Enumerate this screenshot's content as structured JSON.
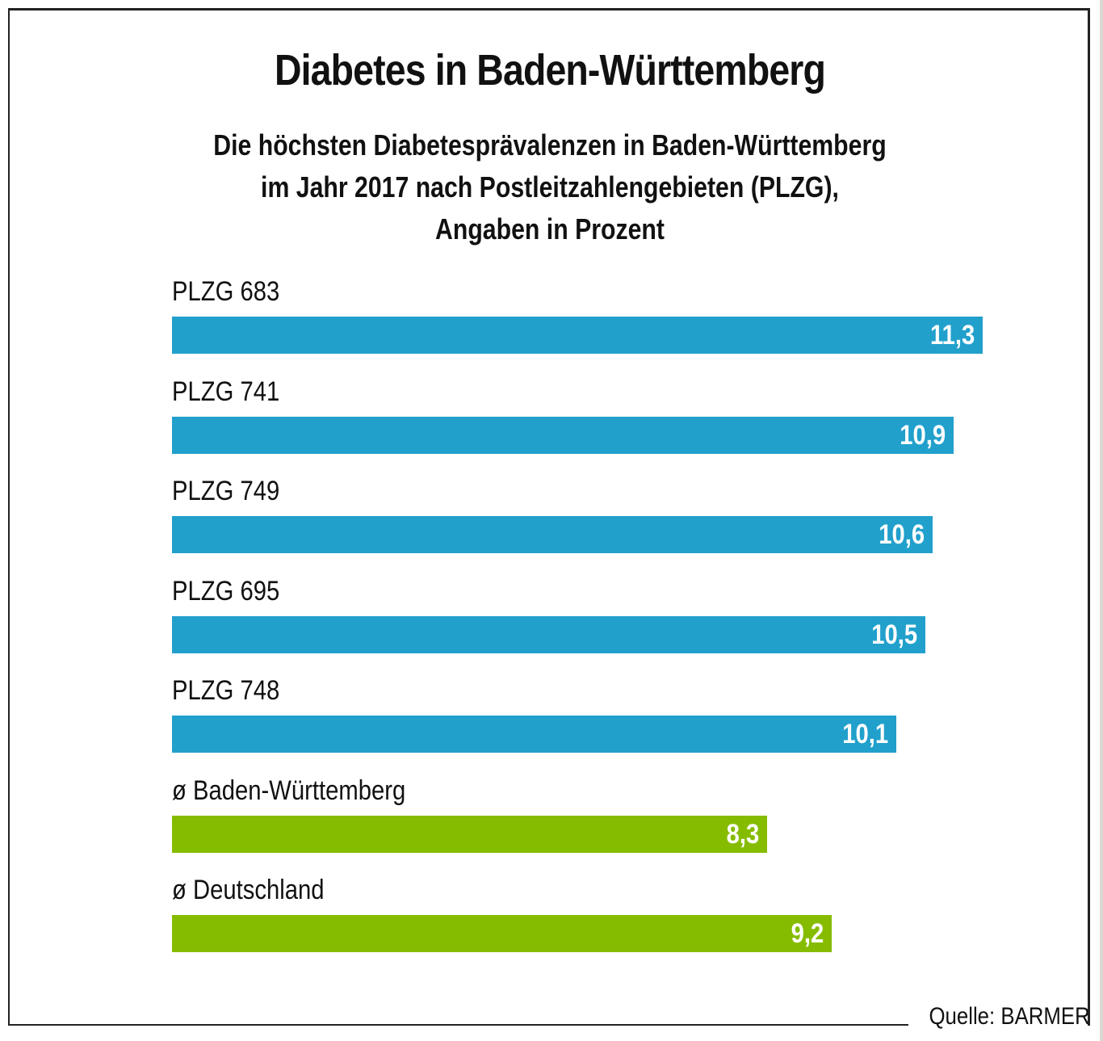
{
  "chart_data": {
    "type": "bar",
    "orientation": "horizontal",
    "title": "Diabetes in Baden-Württemberg",
    "subtitle": [
      "Die höchsten Diabetesprävalenzen in Baden-Württemberg",
      "im Jahr 2017 nach Postleitzahlengebieten (PLZG),",
      "Angaben in Prozent"
    ],
    "categories": [
      "PLZG 683",
      "PLZG 741",
      "PLZG 749",
      "PLZG 695",
      "PLZG 748",
      "ø Baden-Württemberg",
      "ø Deutschland"
    ],
    "values": [
      11.3,
      10.9,
      10.6,
      10.5,
      10.1,
      8.3,
      9.2
    ],
    "value_labels": [
      "11,3",
      "10,9",
      "10,6",
      "10,5",
      "10,1",
      "8,3",
      "9,2"
    ],
    "bar_colors": [
      "#21a0cc",
      "#21a0cc",
      "#21a0cc",
      "#21a0cc",
      "#21a0cc",
      "#86bc00",
      "#86bc00"
    ],
    "xlabel": "",
    "ylabel": "",
    "xlim": [
      0,
      11.3
    ],
    "grid": false,
    "legend": "none",
    "source": "Quelle: BARMER"
  }
}
